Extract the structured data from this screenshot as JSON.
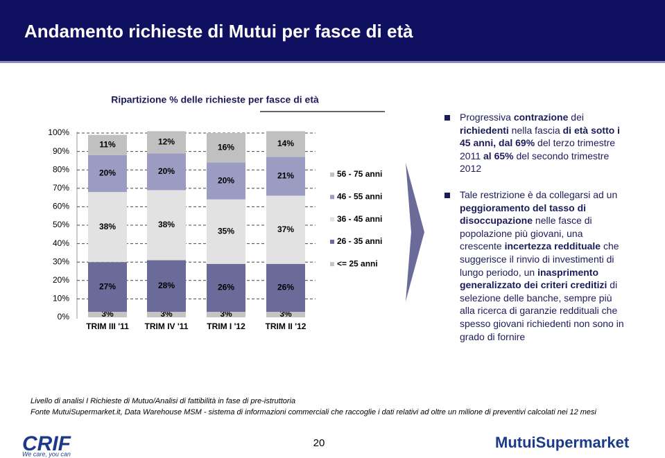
{
  "header": {
    "title": "Andamento richieste di Mutui per fasce di età"
  },
  "chart_data": {
    "type": "stacked-bar",
    "title": "Ripartizione % delle richieste per fasce di età",
    "categories": [
      "TRIM III '11",
      "TRIM IV '11",
      "TRIM I '12",
      "TRIM II '12"
    ],
    "series": [
      {
        "name": "<= 25 anni",
        "color": "#c4c4c4",
        "values": [
          3,
          3,
          3,
          3
        ],
        "value_labels": [
          "3%",
          "3%",
          "3%",
          "3%"
        ]
      },
      {
        "name": "26 - 35 anni",
        "color": "#6b6b99",
        "values": [
          27,
          28,
          26,
          26
        ],
        "value_labels": [
          "27%",
          "28%",
          "26%",
          "26%"
        ]
      },
      {
        "name": "36 - 45 anni",
        "color": "#e2e2e2",
        "values": [
          38,
          38,
          35,
          37
        ],
        "value_labels": [
          "38%",
          "38%",
          "35%",
          "37%"
        ]
      },
      {
        "name": "46 - 55 anni",
        "color": "#9c9cc2",
        "values": [
          20,
          20,
          20,
          21
        ],
        "value_labels": [
          "20%",
          "20%",
          "20%",
          "21%"
        ]
      },
      {
        "name": "56 - 75 anni",
        "color": "#c0c0c0",
        "values": [
          11,
          12,
          16,
          14
        ],
        "value_labels": [
          "11%",
          "12%",
          "16%",
          "14%"
        ]
      }
    ],
    "ylim": [
      0,
      100
    ],
    "yticks": [
      {
        "value": 0,
        "label": "0%"
      },
      {
        "value": 10,
        "label": "10%"
      },
      {
        "value": 20,
        "label": "20%"
      },
      {
        "value": 30,
        "label": "30%"
      },
      {
        "value": 40,
        "label": "40%"
      },
      {
        "value": 50,
        "label": "50%"
      },
      {
        "value": 60,
        "label": "60%"
      },
      {
        "value": 70,
        "label": "70%"
      },
      {
        "value": 80,
        "label": "80%"
      },
      {
        "value": 90,
        "label": "90%"
      },
      {
        "value": 100,
        "label": "100%"
      }
    ],
    "grid": true
  },
  "bullets": [
    [
      {
        "text": "Progressiva ",
        "bold": false
      },
      {
        "text": "contrazione",
        "bold": true
      },
      {
        "text": " dei ",
        "bold": false
      },
      {
        "text": "richiedenti",
        "bold": true
      },
      {
        "text": " nella fascia ",
        "bold": false
      },
      {
        "text": "di età sotto i 45 anni, dal 69%",
        "bold": true
      },
      {
        "text": " del terzo trimestre 2011 ",
        "bold": false
      },
      {
        "text": "al 65%",
        "bold": true
      },
      {
        "text": " del secondo trimestre 2012",
        "bold": false
      }
    ],
    [
      {
        "text": "Tale restrizione è da collegarsi ad un ",
        "bold": false
      },
      {
        "text": "peggioramento del tasso di disoccupazione",
        "bold": true
      },
      {
        "text": " nelle fasce di popolazione più giovani, una crescente ",
        "bold": false
      },
      {
        "text": "incertezza reddituale",
        "bold": true
      },
      {
        "text": " che suggerisce il rinvio di investimenti di lungo periodo, un ",
        "bold": false
      },
      {
        "text": "inasprimento generalizzato dei criteri creditizi",
        "bold": true
      },
      {
        "text": " di selezione delle banche, sempre più alla ricerca di garanzie reddituali che spesso giovani richiedenti non sono in grado di fornire",
        "bold": false
      }
    ]
  ],
  "footer": {
    "note": "Livello di analisi I    Richieste di Mutuo/Analisi di fattibilità in fase di pre-istruttoria",
    "source": "Fonte MutuiSupermarket.it, Data Warehouse MSM - sistema di informazioni commerciali che raccoglie i dati relativi ad oltre un milione di preventivi calcolati nei 12 mesi",
    "page": "20"
  },
  "logos": {
    "left": "CRIF",
    "left_tagline": "We care, you can",
    "right": "MutuiSupermarket"
  }
}
